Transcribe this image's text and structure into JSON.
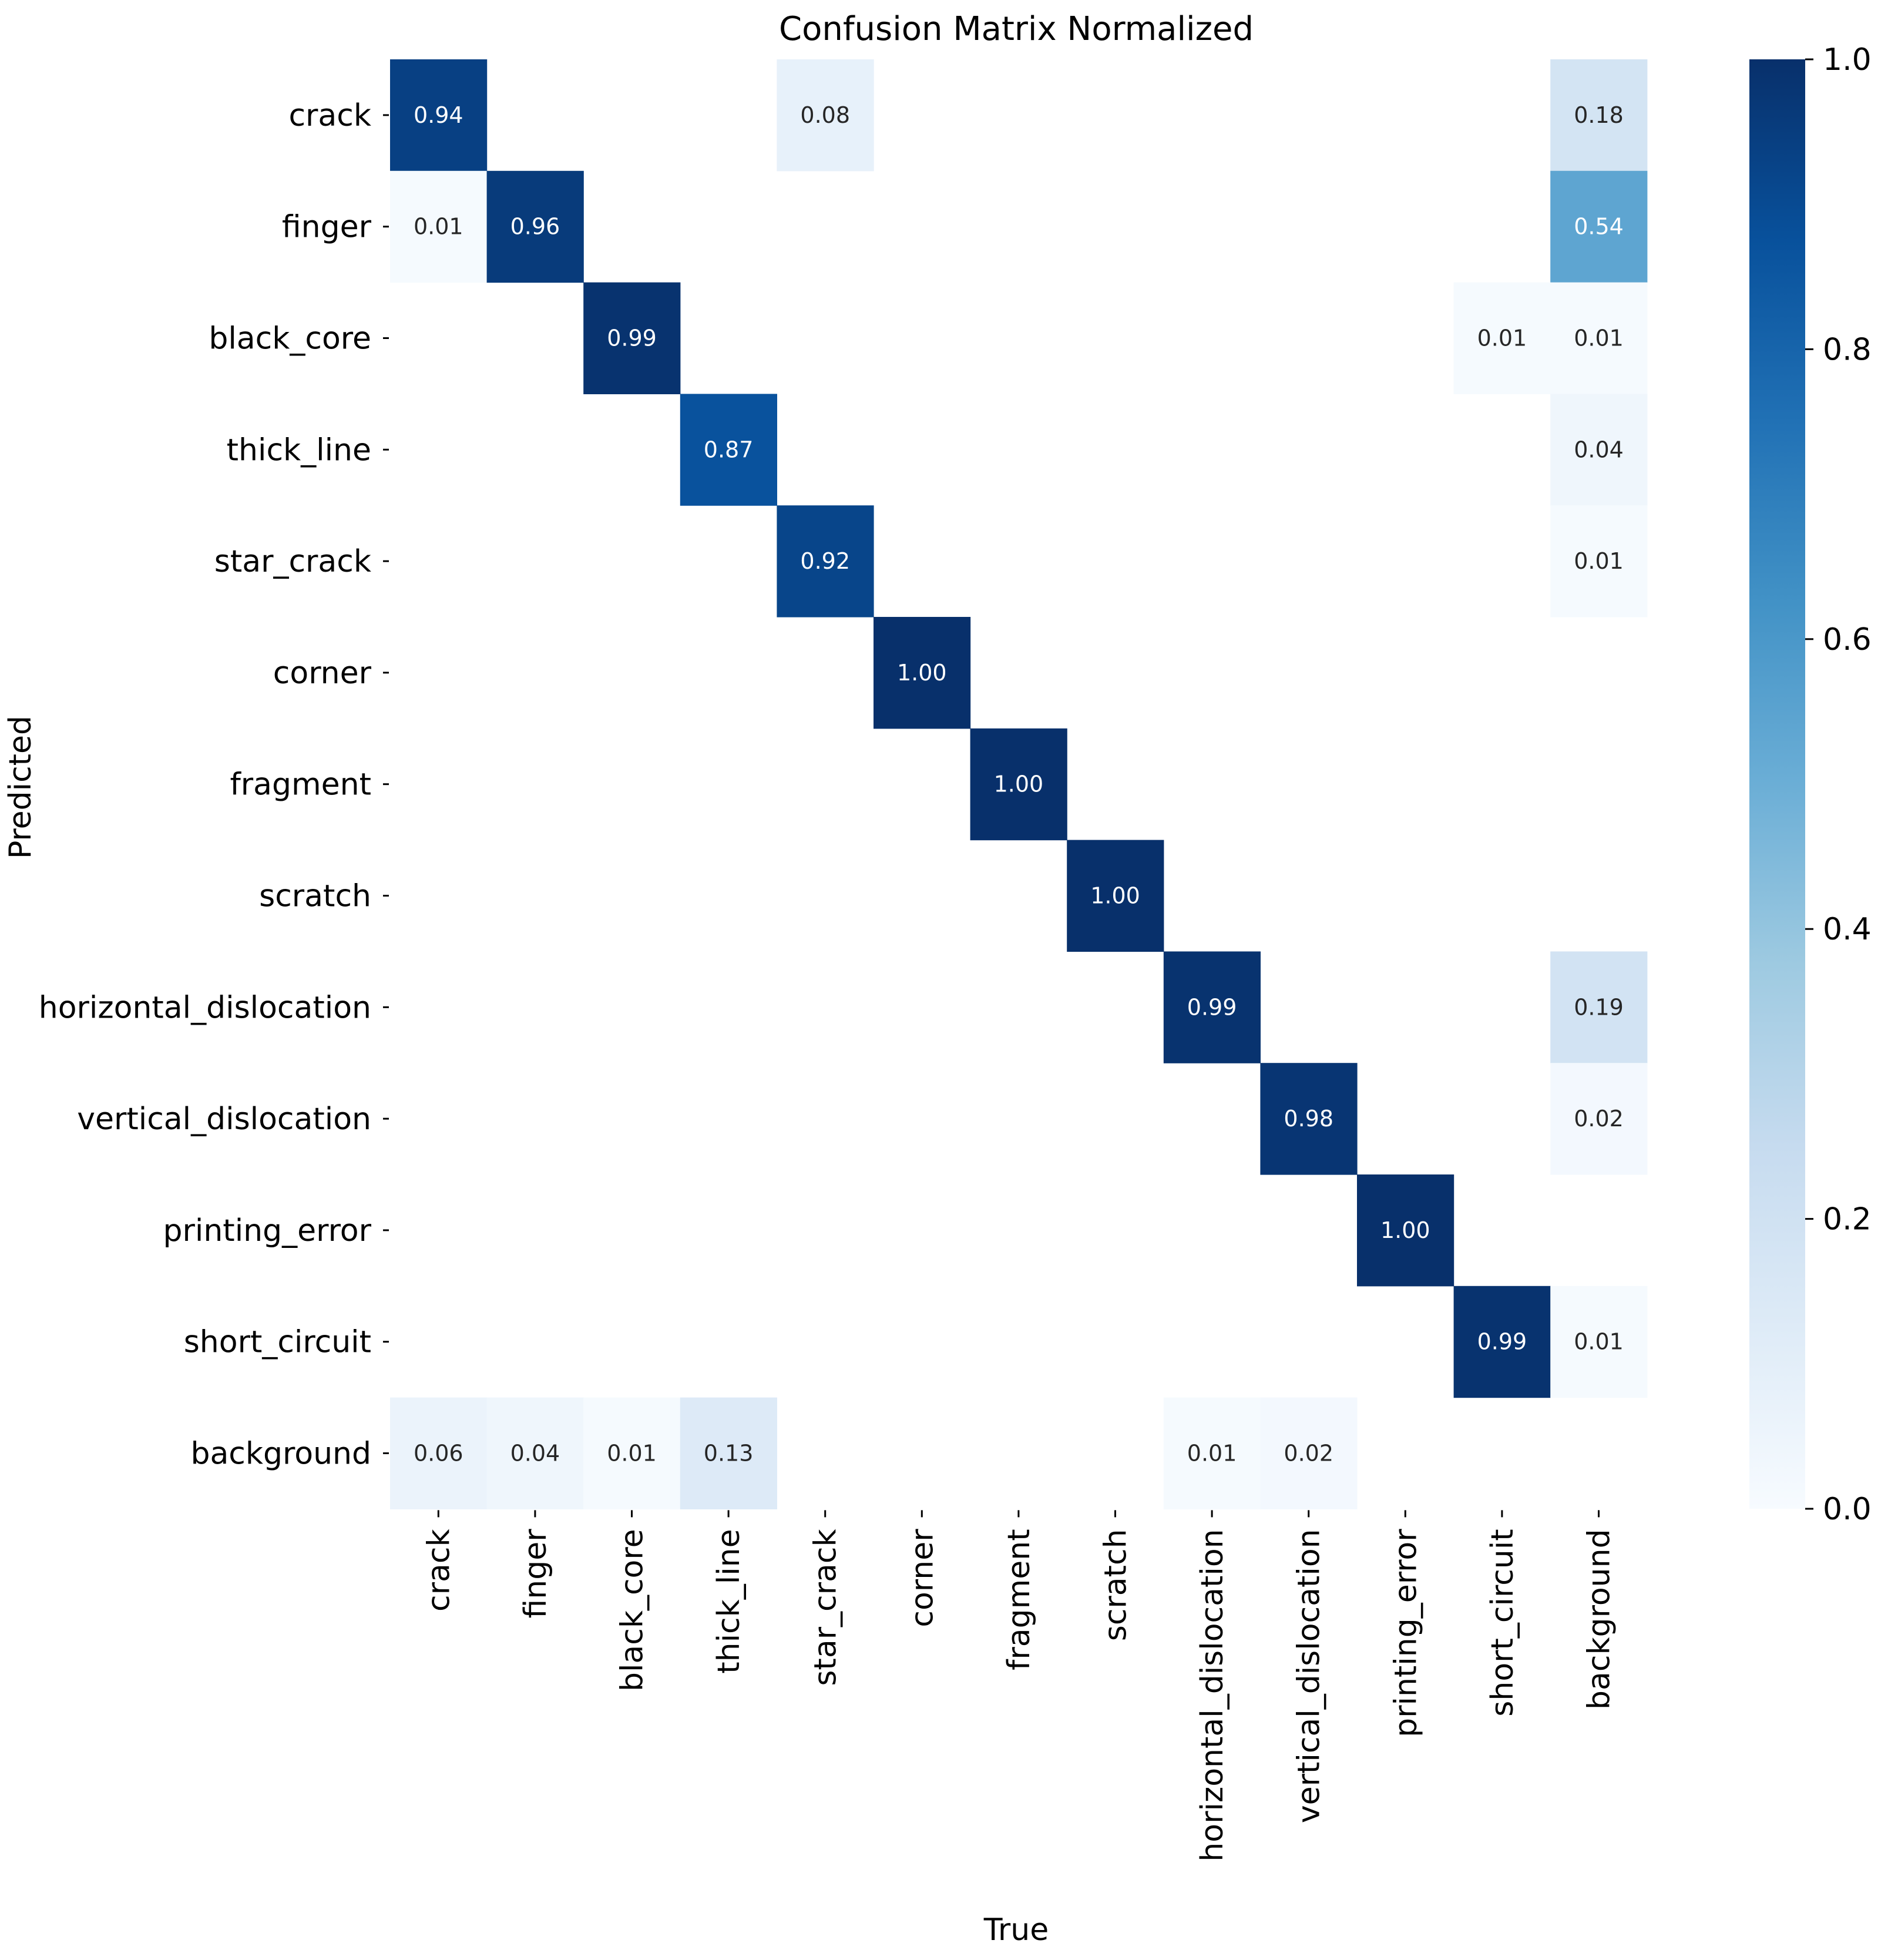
{
  "chart_data": {
    "type": "heatmap",
    "title": "Confusion Matrix Normalized",
    "xlabel": "True",
    "ylabel": "Predicted",
    "rows": [
      "crack",
      "finger",
      "black_core",
      "thick_line",
      "star_crack",
      "corner",
      "fragment",
      "scratch",
      "horizontal_dislocation",
      "vertical_dislocation",
      "printing_error",
      "short_circuit",
      "background"
    ],
    "columns": [
      "crack",
      "finger",
      "black_core",
      "thick_line",
      "star_crack",
      "corner",
      "fragment",
      "scratch",
      "horizontal_dislocation",
      "vertical_dislocation",
      "printing_error",
      "short_circuit",
      "background"
    ],
    "values": [
      [
        0.94,
        null,
        null,
        null,
        0.08,
        null,
        null,
        null,
        null,
        null,
        null,
        null,
        0.18
      ],
      [
        0.01,
        0.96,
        null,
        null,
        null,
        null,
        null,
        null,
        null,
        null,
        null,
        null,
        0.54
      ],
      [
        null,
        null,
        0.99,
        null,
        null,
        null,
        null,
        null,
        null,
        null,
        null,
        0.01,
        0.01
      ],
      [
        null,
        null,
        null,
        0.87,
        null,
        null,
        null,
        null,
        null,
        null,
        null,
        null,
        0.04
      ],
      [
        null,
        null,
        null,
        null,
        0.92,
        null,
        null,
        null,
        null,
        null,
        null,
        null,
        0.01
      ],
      [
        null,
        null,
        null,
        null,
        null,
        1.0,
        null,
        null,
        null,
        null,
        null,
        null,
        null
      ],
      [
        null,
        null,
        null,
        null,
        null,
        null,
        1.0,
        null,
        null,
        null,
        null,
        null,
        null
      ],
      [
        null,
        null,
        null,
        null,
        null,
        null,
        null,
        1.0,
        null,
        null,
        null,
        null,
        null
      ],
      [
        null,
        null,
        null,
        null,
        null,
        null,
        null,
        null,
        0.99,
        null,
        null,
        null,
        0.19
      ],
      [
        null,
        null,
        null,
        null,
        null,
        null,
        null,
        null,
        null,
        0.98,
        null,
        null,
        0.02
      ],
      [
        null,
        null,
        null,
        null,
        null,
        null,
        null,
        null,
        null,
        null,
        1.0,
        null,
        null
      ],
      [
        null,
        null,
        null,
        null,
        null,
        null,
        null,
        null,
        null,
        null,
        null,
        0.99,
        0.01
      ],
      [
        0.06,
        0.04,
        0.01,
        0.13,
        null,
        null,
        null,
        null,
        0.01,
        0.02,
        null,
        null,
        null
      ]
    ],
    "value_format": "0.00",
    "colormap": "Blues",
    "colorbar": {
      "range": [
        0.0,
        1.0
      ],
      "ticks": [
        0.0,
        0.2,
        0.4,
        0.6,
        0.8,
        1.0
      ],
      "tick_labels": [
        "0.0",
        "0.2",
        "0.4",
        "0.6",
        "0.8",
        "1.0"
      ]
    },
    "colors": {
      "low": "#f7fbff",
      "high": "#08306b",
      "text_dark": "#262626",
      "text_light": "#ffffff"
    }
  }
}
